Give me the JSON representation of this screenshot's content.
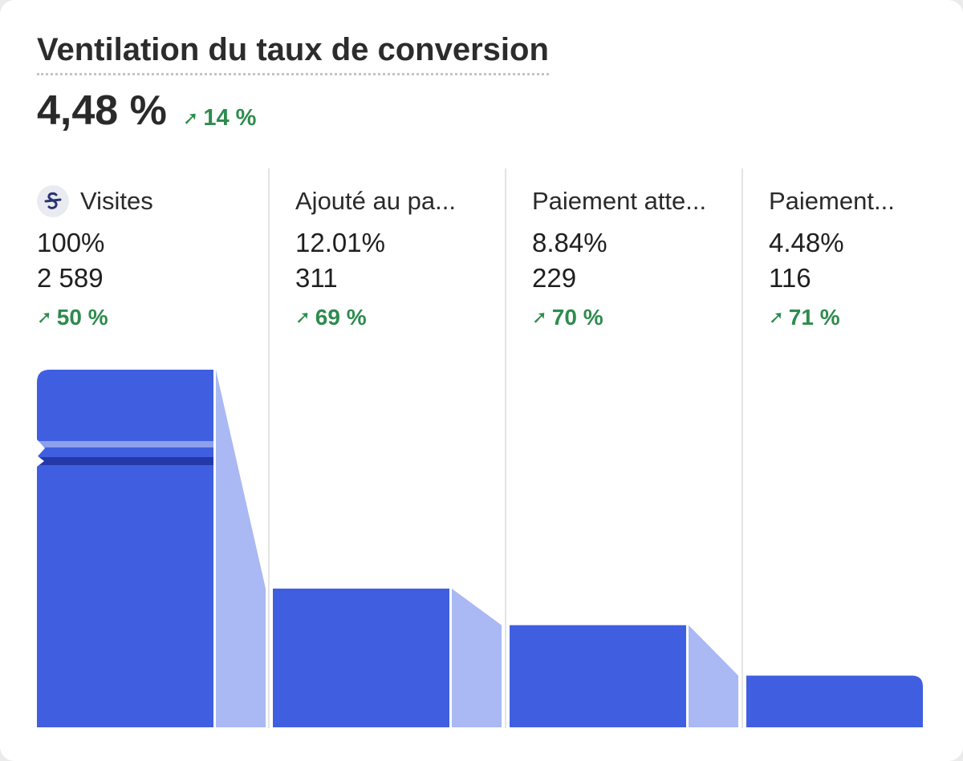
{
  "title": "Ventilation du taux de conversion",
  "headline": {
    "value": "4,48 %",
    "change": "14 %"
  },
  "colors": {
    "bar": "#3f5fe0",
    "connector": "#aab9f3",
    "positive": "#2e8b4e",
    "break_stripe": "#8ca0ee",
    "break_dark": "#2439a8"
  },
  "icons": {
    "stage_icon": "strikethrough-s-icon",
    "trend": "arrow-up-right-icon"
  },
  "stages": [
    {
      "name": "Visites",
      "percent": "100%",
      "count": "2 589",
      "change": "50 %",
      "has_icon": true
    },
    {
      "name": "Ajouté au pa...",
      "percent": "12.01%",
      "count": "311",
      "change": "69 %",
      "has_icon": false
    },
    {
      "name": "Paiement atte...",
      "percent": "8.84%",
      "count": "229",
      "change": "70 %",
      "has_icon": false
    },
    {
      "name": "Paiement...",
      "percent": "4.48%",
      "count": "116",
      "change": "71 %",
      "has_icon": false
    }
  ],
  "chart_data": {
    "type": "bar",
    "categories": [
      "Visites",
      "Ajouté au pa...",
      "Paiement atte...",
      "Paiement..."
    ],
    "values": [
      2589,
      311,
      229,
      116
    ],
    "percentages": [
      100,
      12.01,
      8.84,
      4.48
    ],
    "changes_percent": [
      50,
      69,
      70,
      71
    ],
    "title": "Ventilation du taux de conversion",
    "axis_break": true,
    "grid": false,
    "legend": "none"
  }
}
